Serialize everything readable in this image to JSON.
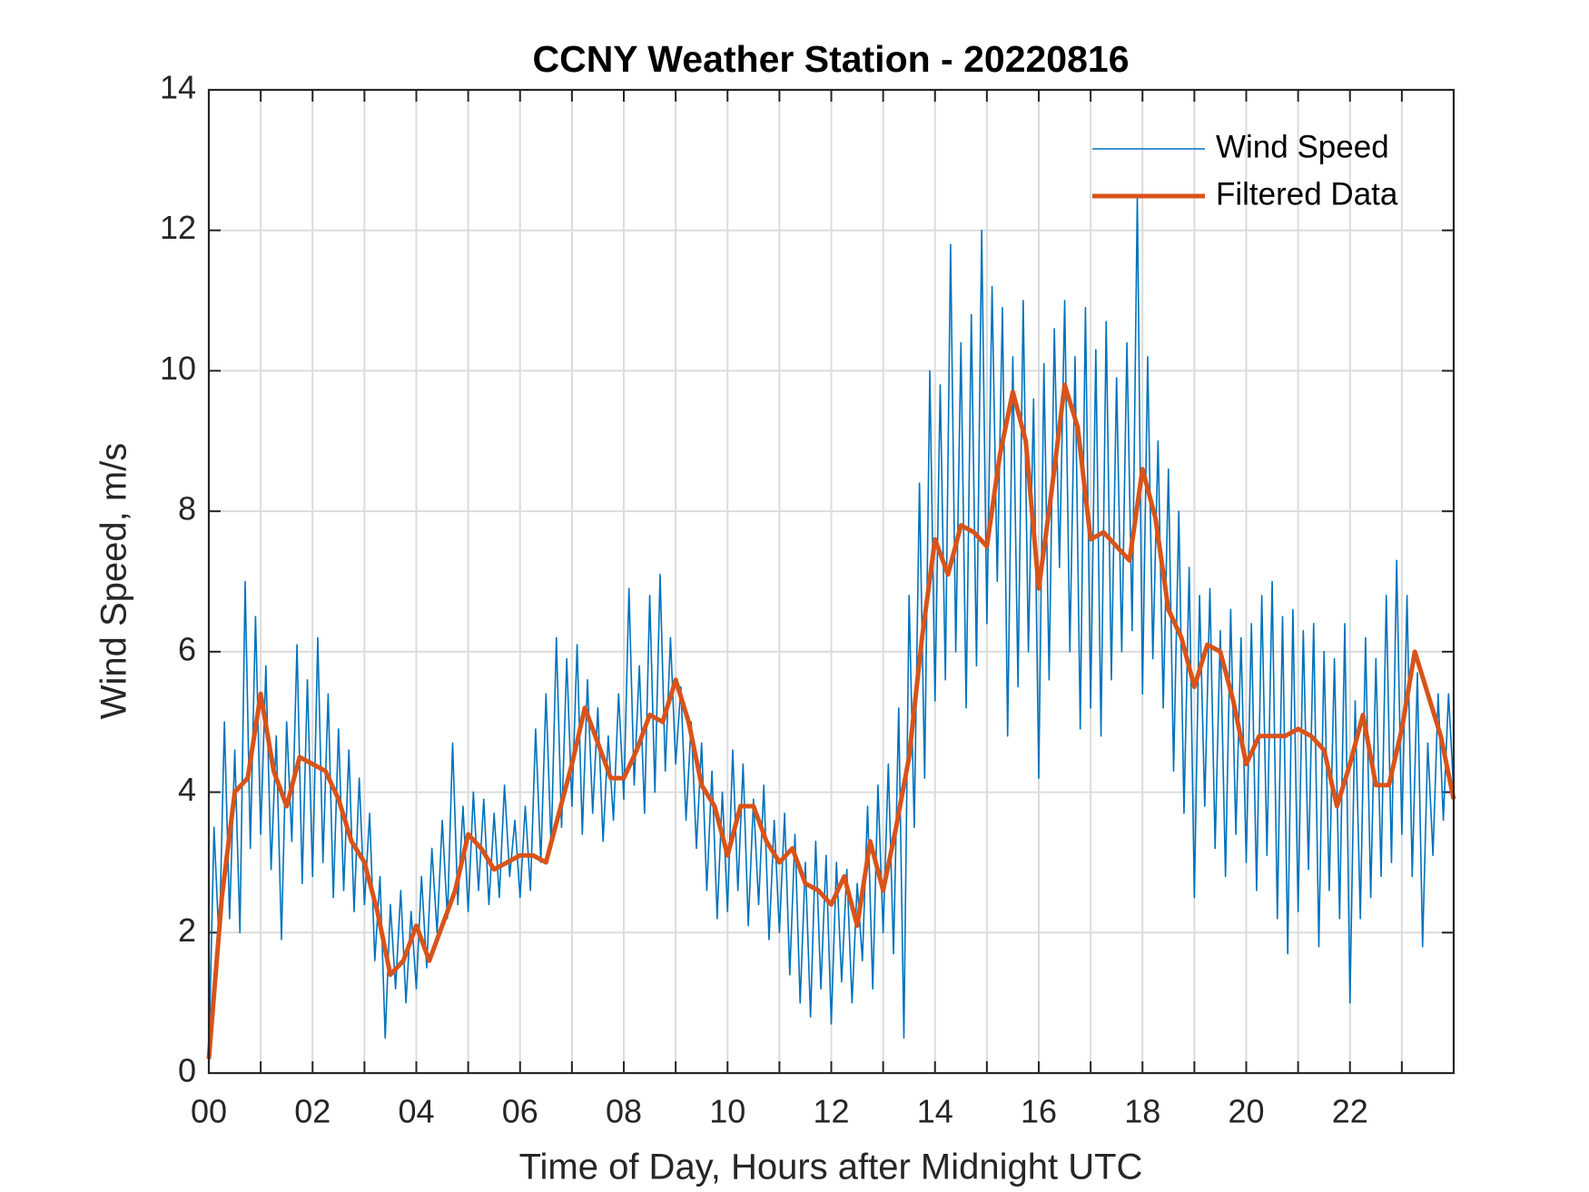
{
  "chart_data": {
    "type": "line",
    "title": "CCNY Weather Station - 20220816",
    "xlabel": "Time of Day, Hours after Midnight UTC",
    "ylabel": "Wind Speed, m/s",
    "xlim": [
      0,
      24
    ],
    "ylim": [
      0,
      14
    ],
    "xticks": [
      {
        "value": 0,
        "label": "00"
      },
      {
        "value": 2,
        "label": "02"
      },
      {
        "value": 4,
        "label": "04"
      },
      {
        "value": 6,
        "label": "06"
      },
      {
        "value": 8,
        "label": "08"
      },
      {
        "value": 10,
        "label": "10"
      },
      {
        "value": 12,
        "label": "12"
      },
      {
        "value": 14,
        "label": "14"
      },
      {
        "value": 16,
        "label": "16"
      },
      {
        "value": 18,
        "label": "18"
      },
      {
        "value": 20,
        "label": "20"
      },
      {
        "value": 22,
        "label": "22"
      }
    ],
    "xminorticks": [
      1,
      3,
      5,
      7,
      9,
      11,
      13,
      15,
      17,
      19,
      21,
      23
    ],
    "yticks": [
      0,
      2,
      4,
      6,
      8,
      10,
      12,
      14
    ],
    "grid": true,
    "legend": "northeast",
    "series": [
      {
        "name": "Wind Speed",
        "color": "#0072bd",
        "x": [
          0,
          0.1,
          0.2,
          0.3,
          0.4,
          0.5,
          0.6,
          0.7,
          0.8,
          0.9,
          1,
          1.1,
          1.2,
          1.3,
          1.4,
          1.5,
          1.6,
          1.7,
          1.8,
          1.9,
          2,
          2.1,
          2.2,
          2.3,
          2.4,
          2.5,
          2.6,
          2.7,
          2.8,
          2.9,
          3,
          3.1,
          3.2,
          3.3,
          3.4,
          3.5,
          3.6,
          3.7,
          3.8,
          3.9,
          4,
          4.1,
          4.2,
          4.3,
          4.4,
          4.5,
          4.6,
          4.7,
          4.8,
          4.9,
          5,
          5.1,
          5.2,
          5.3,
          5.4,
          5.5,
          5.6,
          5.7,
          5.8,
          5.9,
          6,
          6.1,
          6.2,
          6.3,
          6.4,
          6.5,
          6.6,
          6.7,
          6.8,
          6.9,
          7,
          7.1,
          7.2,
          7.3,
          7.4,
          7.5,
          7.6,
          7.7,
          7.8,
          7.9,
          8,
          8.1,
          8.2,
          8.3,
          8.4,
          8.5,
          8.6,
          8.7,
          8.8,
          8.9,
          9,
          9.1,
          9.2,
          9.3,
          9.4,
          9.5,
          9.6,
          9.7,
          9.8,
          9.9,
          10,
          10.1,
          10.2,
          10.3,
          10.4,
          10.5,
          10.6,
          10.7,
          10.8,
          10.9,
          11,
          11.1,
          11.2,
          11.3,
          11.4,
          11.5,
          11.6,
          11.7,
          11.8,
          11.9,
          12,
          12.1,
          12.2,
          12.3,
          12.4,
          12.5,
          12.6,
          12.7,
          12.8,
          12.9,
          13,
          13.1,
          13.2,
          13.3,
          13.4,
          13.5,
          13.6,
          13.7,
          13.8,
          13.9,
          14,
          14.1,
          14.2,
          14.3,
          14.4,
          14.5,
          14.6,
          14.7,
          14.8,
          14.9,
          15,
          15.1,
          15.2,
          15.3,
          15.4,
          15.5,
          15.6,
          15.7,
          15.8,
          15.9,
          16,
          16.1,
          16.2,
          16.3,
          16.4,
          16.5,
          16.6,
          16.7,
          16.8,
          16.9,
          17,
          17.1,
          17.2,
          17.3,
          17.4,
          17.5,
          17.6,
          17.7,
          17.8,
          17.9,
          18,
          18.1,
          18.2,
          18.3,
          18.4,
          18.5,
          18.6,
          18.7,
          18.8,
          18.9,
          19,
          19.1,
          19.2,
          19.3,
          19.4,
          19.5,
          19.6,
          19.7,
          19.8,
          19.9,
          20,
          20.1,
          20.2,
          20.3,
          20.4,
          20.5,
          20.6,
          20.7,
          20.8,
          20.9,
          21,
          21.1,
          21.2,
          21.3,
          21.4,
          21.5,
          21.6,
          21.7,
          21.8,
          21.9,
          22,
          22.1,
          22.2,
          22.3,
          22.4,
          22.5,
          22.6,
          22.7,
          22.8,
          22.9,
          23,
          23.1,
          23.2,
          23.3,
          23.4,
          23.5,
          23.6,
          23.7,
          23.8,
          23.9,
          24
        ],
        "values": [
          0.2,
          3.5,
          1.8,
          5.0,
          2.2,
          4.6,
          2.0,
          7.0,
          3.2,
          6.5,
          3.4,
          5.8,
          2.9,
          4.8,
          1.9,
          5.0,
          3.3,
          6.1,
          2.7,
          5.6,
          2.8,
          6.2,
          3.0,
          5.4,
          2.5,
          4.9,
          2.6,
          4.6,
          2.3,
          4.2,
          2.4,
          3.7,
          1.6,
          2.8,
          0.5,
          2.4,
          1.2,
          2.6,
          1.0,
          2.3,
          1.2,
          2.8,
          1.5,
          3.2,
          2.0,
          3.6,
          2.2,
          4.7,
          2.4,
          3.8,
          2.3,
          4.0,
          2.6,
          3.9,
          2.4,
          3.7,
          2.5,
          4.1,
          2.8,
          3.6,
          2.5,
          3.8,
          2.6,
          4.9,
          3.0,
          5.4,
          3.2,
          6.2,
          3.5,
          5.9,
          3.8,
          6.1,
          3.4,
          5.6,
          3.7,
          5.2,
          3.3,
          4.8,
          3.6,
          5.4,
          3.9,
          6.9,
          4.1,
          5.8,
          3.7,
          6.8,
          4.0,
          7.1,
          4.3,
          6.2,
          4.4,
          5.5,
          3.6,
          5.0,
          3.2,
          4.7,
          2.6,
          4.3,
          2.2,
          4.0,
          2.3,
          4.6,
          2.6,
          4.4,
          2.1,
          3.9,
          2.4,
          4.1,
          1.9,
          3.6,
          2.0,
          3.7,
          1.4,
          3.4,
          1.0,
          3.0,
          0.8,
          3.3,
          1.2,
          3.1,
          0.7,
          3.0,
          1.3,
          2.9,
          1.0,
          2.7,
          1.6,
          3.8,
          1.2,
          4.1,
          2.0,
          4.4,
          1.7,
          5.2,
          0.5,
          6.8,
          3.5,
          8.4,
          4.2,
          10.0,
          5.3,
          9.8,
          5.6,
          11.8,
          6.0,
          10.4,
          5.2,
          10.8,
          5.8,
          12.0,
          6.4,
          11.2,
          7.0,
          10.9,
          4.8,
          10.2,
          5.5,
          11.0,
          6.0,
          9.6,
          4.2,
          10.1,
          5.6,
          10.6,
          7.2,
          11.0,
          6.0,
          10.2,
          4.9,
          10.9,
          5.2,
          10.3,
          4.8,
          10.7,
          5.6,
          9.9,
          6.0,
          10.4,
          6.3,
          12.5,
          5.4,
          10.2,
          5.9,
          9.0,
          5.2,
          8.6,
          4.3,
          8.0,
          3.7,
          7.2,
          2.5,
          6.8,
          3.8,
          6.9,
          3.2,
          6.3,
          2.8,
          6.6,
          3.4,
          6.2,
          3.0,
          6.4,
          2.6,
          6.8,
          3.1,
          7.0,
          2.2,
          6.5,
          1.7,
          6.6,
          2.3,
          6.3,
          2.9,
          6.4,
          1.8,
          6.0,
          2.6,
          5.9,
          2.2,
          6.4,
          1.0,
          5.3,
          2.2,
          6.2,
          2.5,
          5.9,
          2.8,
          6.8,
          3.0,
          7.3,
          3.4,
          6.8,
          2.8,
          5.7,
          1.8,
          4.7,
          3.1,
          5.4,
          3.6,
          5.4,
          4.0
        ]
      },
      {
        "name": "Filtered Data",
        "color": "#d95319",
        "x": [
          0,
          0.25,
          0.5,
          0.75,
          1,
          1.25,
          1.5,
          1.75,
          2,
          2.25,
          2.5,
          2.75,
          3,
          3.25,
          3.5,
          3.75,
          4,
          4.25,
          4.5,
          4.75,
          5,
          5.25,
          5.5,
          5.75,
          6,
          6.25,
          6.5,
          6.75,
          7,
          7.25,
          7.5,
          7.75,
          8,
          8.25,
          8.5,
          8.75,
          9,
          9.25,
          9.5,
          9.75,
          10,
          10.25,
          10.5,
          10.75,
          11,
          11.25,
          11.5,
          11.75,
          12,
          12.25,
          12.5,
          12.75,
          13,
          13.25,
          13.5,
          13.75,
          14,
          14.25,
          14.5,
          14.75,
          15,
          15.25,
          15.5,
          15.75,
          16,
          16.25,
          16.5,
          16.75,
          17,
          17.25,
          17.5,
          17.75,
          18,
          18.25,
          18.5,
          18.75,
          19,
          19.25,
          19.5,
          19.75,
          20,
          20.25,
          20.5,
          20.75,
          21,
          21.25,
          21.5,
          21.75,
          22,
          22.25,
          22.5,
          22.75,
          23,
          23.25,
          23.5,
          23.75,
          24
        ],
        "values": [
          0.2,
          2.5,
          4.0,
          4.2,
          5.4,
          4.3,
          3.8,
          4.5,
          4.4,
          4.3,
          3.9,
          3.3,
          3.0,
          2.3,
          1.4,
          1.6,
          2.1,
          1.6,
          2.1,
          2.6,
          3.4,
          3.2,
          2.9,
          3.0,
          3.1,
          3.1,
          3.0,
          3.7,
          4.4,
          5.2,
          4.7,
          4.2,
          4.2,
          4.6,
          5.1,
          5.0,
          5.6,
          5.0,
          4.1,
          3.8,
          3.1,
          3.8,
          3.8,
          3.3,
          3.0,
          3.2,
          2.7,
          2.6,
          2.4,
          2.8,
          2.1,
          3.3,
          2.6,
          3.5,
          4.5,
          6.2,
          7.6,
          7.1,
          7.8,
          7.7,
          7.5,
          8.8,
          9.7,
          9.0,
          6.9,
          8.3,
          9.8,
          9.2,
          7.6,
          7.7,
          7.5,
          7.3,
          8.6,
          7.9,
          6.6,
          6.2,
          5.5,
          6.1,
          6.0,
          5.3,
          4.4,
          4.8,
          4.8,
          4.8,
          4.9,
          4.8,
          4.6,
          3.8,
          4.4,
          5.1,
          4.1,
          4.1,
          4.9,
          6.0,
          5.4,
          4.8,
          3.9
        ]
      }
    ]
  }
}
